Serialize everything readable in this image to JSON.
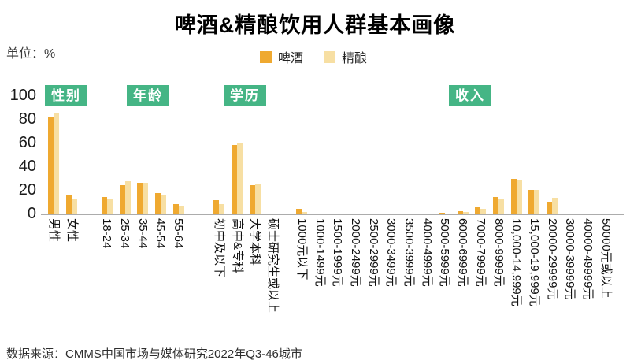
{
  "title": "啤酒&精酿饮用人群基本画像",
  "unit_label": "单位：%",
  "legend": [
    {
      "label": "啤酒",
      "color": "#EFA930"
    },
    {
      "label": "精酿",
      "color": "#F7DFA3"
    }
  ],
  "source": "数据来源：CMMS中国市场与媒体研究2022年Q3-46城市",
  "colors": {
    "beer": "#EFA930",
    "craft": "#F7DFA3",
    "badge_green": "#45B585",
    "axis": "#ACACAC"
  },
  "chart_data": {
    "type": "bar",
    "title": "啤酒&精酿饮用人群基本画像",
    "ylabel": "%",
    "ylim": [
      0,
      100
    ],
    "yticks": [
      0,
      20,
      40,
      60,
      80,
      100
    ],
    "grid": false,
    "legend_position": "top",
    "series_names": [
      "啤酒",
      "精酿"
    ],
    "groups": [
      {
        "key": "gender",
        "label": "性别",
        "categories": [
          "男性",
          "女性"
        ],
        "series": [
          {
            "name": "啤酒",
            "values": [
              83,
              17
            ]
          },
          {
            "name": "精酿",
            "values": [
              86,
              13
            ]
          }
        ]
      },
      {
        "key": "age",
        "label": "年龄",
        "categories": [
          "18-24",
          "25-34",
          "35-44",
          "45-54",
          "55-64"
        ],
        "series": [
          {
            "name": "啤酒",
            "values": [
              15,
              25,
              27,
              18,
              9
            ]
          },
          {
            "name": "精酿",
            "values": [
              13,
              28,
              27,
              17,
              7
            ]
          }
        ]
      },
      {
        "key": "edu",
        "label": "学历",
        "categories": [
          "初中及以下",
          "高中&专科",
          "大学本科",
          "硕士研究生或以上"
        ],
        "series": [
          {
            "name": "啤酒",
            "values": [
              12,
              59,
              25,
              0.5
            ]
          },
          {
            "name": "精酿",
            "values": [
              9,
              60,
              26,
              0.5
            ]
          }
        ]
      },
      {
        "key": "income",
        "label": "收入",
        "categories": [
          "1000元以下",
          "1000-1499元",
          "1500-1999元",
          "2000-2499元",
          "2500-2999元",
          "3000-3499元",
          "3500-3999元",
          "4000-4999元",
          "5000-5999元",
          "6000-6999元",
          "7000-7999元",
          "8000-9999元",
          "10,000-14,999元",
          "15,000-19,999元",
          "20000-29999元",
          "30000-39999元",
          "40000-49999元",
          "50000元或以上"
        ],
        "series": [
          {
            "name": "啤酒",
            "values": [
              4.5,
              0,
              0,
              0,
              0,
              0,
              0,
              0,
              1.5,
              3,
              6,
              15,
              30,
              21,
              10,
              1,
              0,
              0
            ]
          },
          {
            "name": "精酿",
            "values": [
              2,
              0,
              0,
              0,
              0,
              0,
              0,
              0,
              1,
              2,
              5,
              13,
              29,
              21,
              14,
              1,
              0,
              0
            ]
          }
        ]
      }
    ]
  }
}
